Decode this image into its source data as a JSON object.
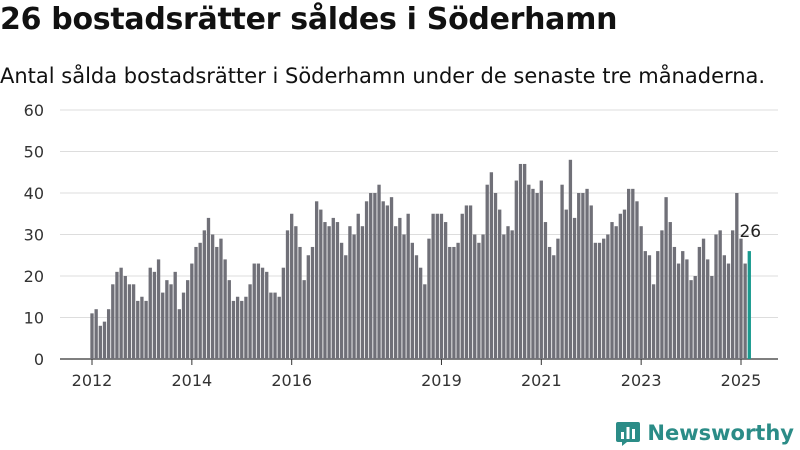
{
  "header": {
    "title": "26 bostadsrätter såldes i Söderhamn",
    "subtitle": "Antal sålda bostadsrätter i Söderhamn under de senaste tre månaderna."
  },
  "brand": {
    "name": "Newsworthy",
    "icon": "bar-chart-logo-icon"
  },
  "colors": {
    "bar": "#707078",
    "highlight": "#1a9a8f",
    "grid": "#dddddd",
    "brand": "#2b8c87"
  },
  "chart_data": {
    "type": "bar",
    "ylim": [
      0,
      60
    ],
    "yticks": [
      0,
      10,
      20,
      30,
      40,
      50,
      60
    ],
    "xticks": [
      "2012",
      "2014",
      "2016",
      "2019",
      "2021",
      "2023",
      "2025"
    ],
    "xtick_positions": [
      2012.0,
      2014.0,
      2016.0,
      2019.0,
      2021.0,
      2023.0,
      2025.0
    ],
    "x_start": 2012.0,
    "x_step": 0.08333,
    "grid": true,
    "last_label": "26",
    "values": [
      11,
      12,
      8,
      9,
      12,
      18,
      21,
      22,
      20,
      18,
      18,
      14,
      15,
      14,
      22,
      21,
      24,
      16,
      19,
      18,
      21,
      12,
      16,
      19,
      23,
      27,
      28,
      31,
      34,
      30,
      27,
      29,
      24,
      19,
      14,
      15,
      14,
      15,
      18,
      23,
      23,
      22,
      21,
      16,
      16,
      15,
      22,
      31,
      35,
      32,
      27,
      19,
      25,
      27,
      38,
      36,
      33,
      32,
      34,
      33,
      28,
      25,
      32,
      30,
      35,
      32,
      38,
      40,
      40,
      42,
      38,
      37,
      39,
      32,
      34,
      30,
      35,
      28,
      25,
      22,
      18,
      29,
      35,
      35,
      35,
      33,
      27,
      27,
      28,
      35,
      37,
      37,
      30,
      28,
      30,
      42,
      45,
      40,
      36,
      30,
      32,
      31,
      43,
      47,
      47,
      42,
      41,
      40,
      43,
      33,
      27,
      25,
      29,
      42,
      36,
      48,
      34,
      40,
      40,
      41,
      37,
      28,
      28,
      29,
      30,
      33,
      32,
      35,
      36,
      41,
      41,
      38,
      32,
      26,
      25,
      18,
      26,
      31,
      39,
      33,
      27,
      23,
      26,
      24,
      19,
      20,
      27,
      29,
      24,
      20,
      30,
      31,
      25,
      23,
      31,
      40,
      29,
      23,
      26
    ]
  }
}
